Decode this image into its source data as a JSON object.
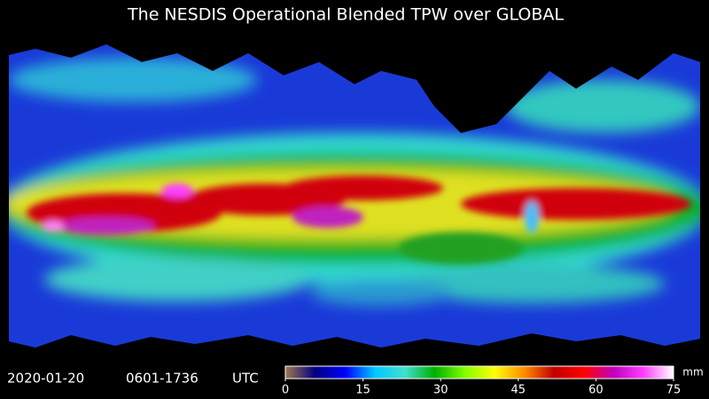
{
  "header": {
    "title": "The NESDIS Operational Blended TPW over GLOBAL"
  },
  "footer": {
    "date": "2020-01-20",
    "time_range": "0601-1736",
    "timezone": "UTC"
  },
  "colorbar": {
    "range": [
      0,
      75
    ],
    "ticks": [
      0,
      15,
      30,
      45,
      60,
      75
    ],
    "unit": "mm",
    "colors": [
      "#a07850",
      "#000080",
      "#0000ff",
      "#00c8ff",
      "#40e0d0",
      "#00b000",
      "#80ff00",
      "#ffff00",
      "#ff8c00",
      "#c00000",
      "#ff0000",
      "#c000c0",
      "#ff40ff",
      "#ffffff"
    ]
  }
}
